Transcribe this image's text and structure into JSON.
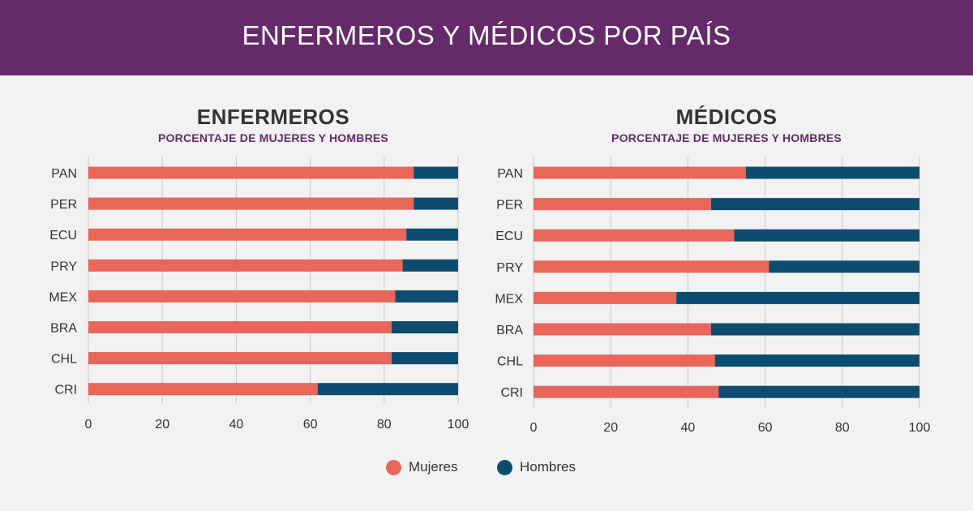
{
  "header": {
    "title": "ENFERMEROS Y MÉDICOS POR PAÍS"
  },
  "colors": {
    "mujeres": "#e8675a",
    "hombres": "#0d4c6e",
    "header": "#642a69",
    "grid": "#c8c8c8"
  },
  "legend": {
    "items": [
      {
        "label": "Mujeres",
        "color": "#e8675a"
      },
      {
        "label": "Hombres",
        "color": "#0d4c6e"
      }
    ]
  },
  "chart_data": [
    {
      "type": "bar",
      "orientation": "horizontal",
      "stacked": true,
      "title": "ENFERMEROS",
      "subtitle": "PORCENTAJE DE MUJERES Y HOMBRES",
      "categories": [
        "PAN",
        "PER",
        "ECU",
        "PRY",
        "MEX",
        "BRA",
        "CHL",
        "CRI"
      ],
      "series": [
        {
          "name": "Mujeres",
          "values": [
            88,
            88,
            86,
            85,
            83,
            82,
            82,
            62
          ]
        },
        {
          "name": "Hombres",
          "values": [
            12,
            12,
            14,
            15,
            17,
            18,
            18,
            38
          ]
        }
      ],
      "xlim": [
        0,
        100
      ],
      "xticks": [
        "0",
        "20",
        "40",
        "60",
        "80",
        "100"
      ],
      "grid": true,
      "legend": "bottom-center"
    },
    {
      "type": "bar",
      "orientation": "horizontal",
      "stacked": true,
      "title": "MÉDICOS",
      "subtitle": "PORCENTAJE DE MUJERES Y HOMBRES",
      "categories": [
        "PAN",
        "PER",
        "ECU",
        "PRY",
        "MEX",
        "BRA",
        "CHL",
        "CRI"
      ],
      "series": [
        {
          "name": "Mujeres",
          "values": [
            55,
            46,
            52,
            61,
            37,
            46,
            47,
            48
          ]
        },
        {
          "name": "Hombres",
          "values": [
            45,
            54,
            48,
            39,
            63,
            54,
            53,
            52
          ]
        }
      ],
      "xlim": [
        0,
        100
      ],
      "xticks": [
        "0",
        "20",
        "40",
        "60",
        "80",
        "100"
      ],
      "grid": true,
      "legend": "bottom-center"
    }
  ]
}
